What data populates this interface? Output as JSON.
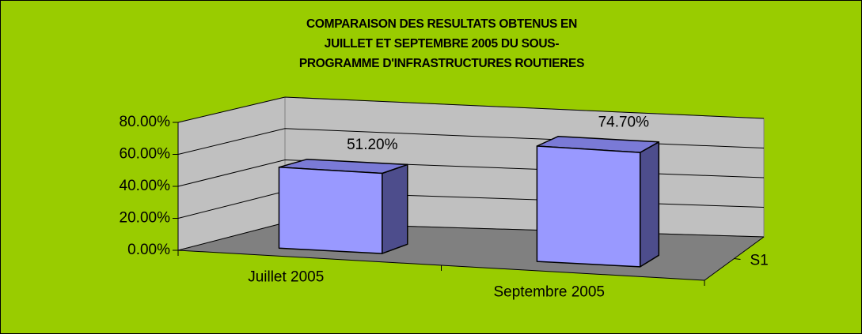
{
  "chart_data": {
    "type": "bar3d",
    "title": [
      "COMPARAISON DES RESULTATS OBTENUS EN",
      "JUILLET ET SEPTEMBRE 2005 DU SOUS-",
      "PROGRAMME D'INFRASTRUCTURES ROUTIERES"
    ],
    "categories": [
      "Juillet 2005",
      "Septembre 2005"
    ],
    "series": [
      {
        "name": "S1",
        "color": "#9999ff",
        "values": [
          51.2,
          74.7
        ],
        "value_labels": [
          "51.20%",
          "74.70%"
        ]
      }
    ],
    "ylim": [
      0,
      80
    ],
    "yticks": [
      {
        "value": 0,
        "label": "0.00%"
      },
      {
        "value": 20,
        "label": "20.00%"
      },
      {
        "value": 40,
        "label": "40.00%"
      },
      {
        "value": 60,
        "label": "60.00%"
      },
      {
        "value": 80,
        "label": "80.00%"
      }
    ],
    "grid": true
  }
}
